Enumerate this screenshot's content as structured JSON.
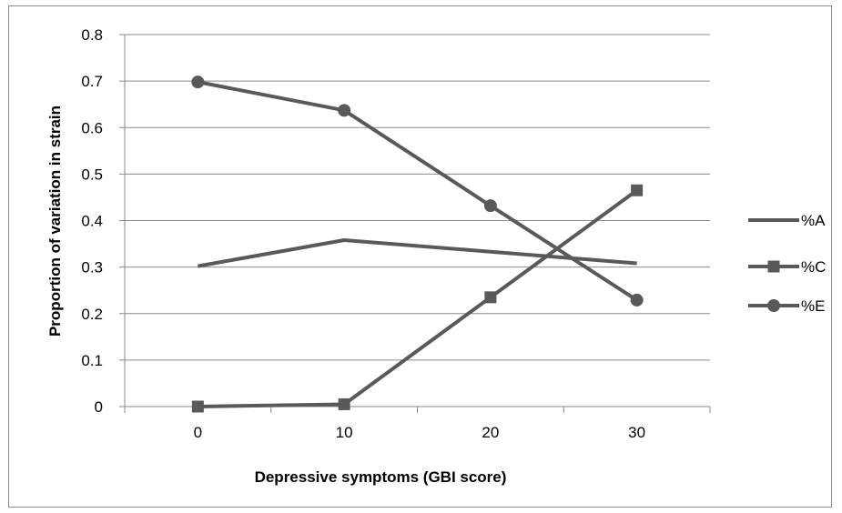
{
  "chart_data": {
    "type": "line",
    "title": "",
    "xlabel": "Depressive symptoms (GBI score)",
    "ylabel": "Proportion of variation in strain",
    "x": [
      0,
      10,
      20,
      30
    ],
    "x_tick_labels": [
      "0",
      "10",
      "20",
      "30"
    ],
    "ylim": [
      0,
      0.8
    ],
    "y_ticks": [
      0,
      0.1,
      0.2,
      0.3,
      0.4,
      0.5,
      0.6,
      0.7,
      0.8
    ],
    "y_tick_labels": [
      "0",
      "0.1",
      "0.2",
      "0.3",
      "0.4",
      "0.5",
      "0.6",
      "0.7",
      "0.8"
    ],
    "grid": "horizontal",
    "legend_position": "right",
    "series": [
      {
        "name": "%A",
        "marker": "none",
        "color": "#595959",
        "values": [
          0.302,
          0.358,
          0.333,
          0.308
        ]
      },
      {
        "name": "%C",
        "marker": "square",
        "color": "#595959",
        "values": [
          0.0,
          0.005,
          0.235,
          0.465
        ]
      },
      {
        "name": "%E",
        "marker": "circle",
        "color": "#595959",
        "values": [
          0.698,
          0.637,
          0.432,
          0.229
        ]
      }
    ]
  }
}
